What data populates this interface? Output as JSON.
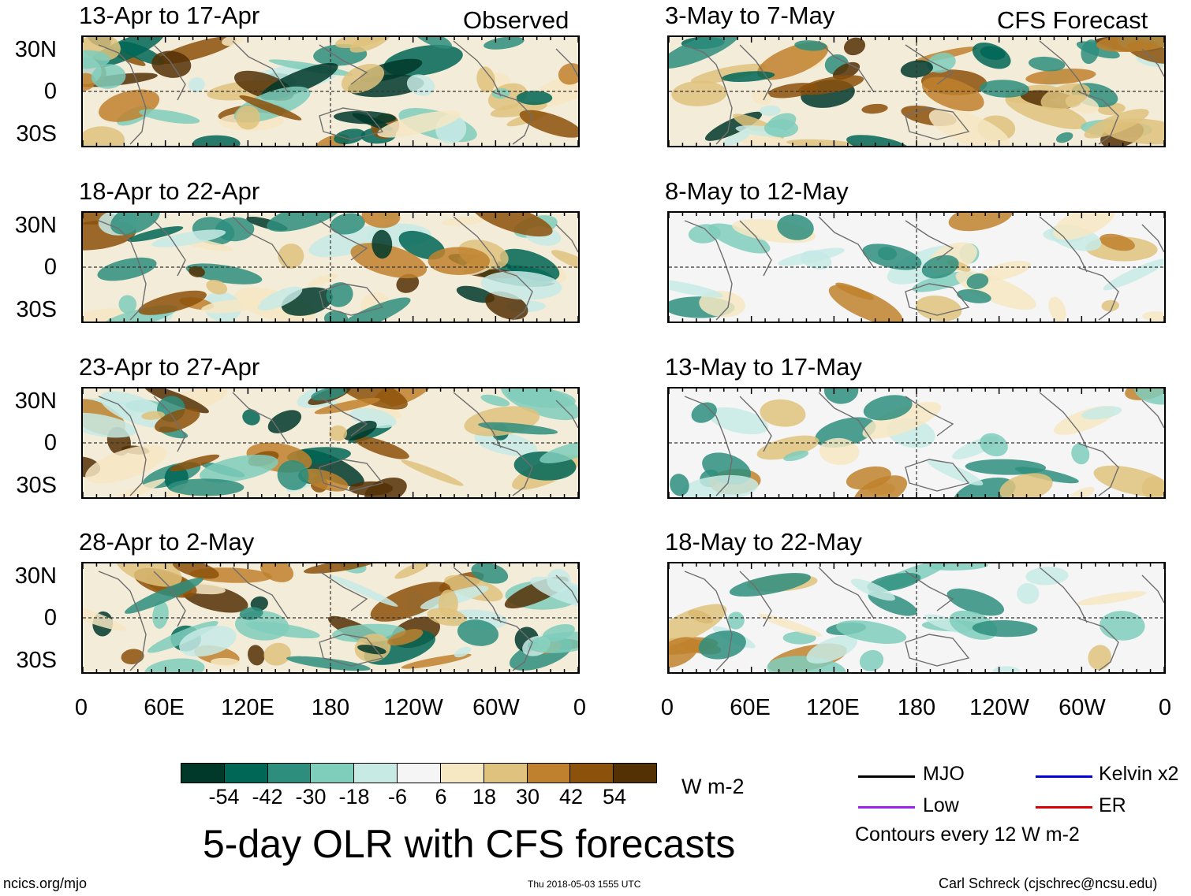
{
  "observed_label": "Observed",
  "forecast_label": "CFS Forecast",
  "panels": [
    {
      "title": "13-Apr to 17-Apr",
      "column": "left"
    },
    {
      "title": "18-Apr to 22-Apr",
      "column": "left"
    },
    {
      "title": "23-Apr to 27-Apr",
      "column": "left"
    },
    {
      "title": "28-Apr to 2-May",
      "column": "left"
    },
    {
      "title": "3-May to 7-May",
      "column": "right"
    },
    {
      "title": "8-May to 12-May",
      "column": "right"
    },
    {
      "title": "13-May to 17-May",
      "column": "right"
    },
    {
      "title": "18-May to 22-May",
      "column": "right"
    }
  ],
  "lat_labels": [
    "30N",
    "0",
    "30S"
  ],
  "lon_labels": [
    "0",
    "60E",
    "120E",
    "180",
    "120W",
    "60W",
    "0"
  ],
  "colorbar": {
    "colors": [
      "#00382a",
      "#006656",
      "#2e8e7e",
      "#7fcdbb",
      "#c7eae5",
      "#f5f5f5",
      "#f6e8c3",
      "#dfc27d",
      "#bf812d",
      "#8c510a",
      "#543005"
    ],
    "labels": [
      "-54",
      "-42",
      "-30",
      "-18",
      "-6",
      "6",
      "18",
      "30",
      "42",
      "54"
    ],
    "units": "W m-2"
  },
  "main_title": "5-day OLR with CFS forecasts",
  "legend": {
    "items": [
      {
        "label": "MJO",
        "color": "#000000"
      },
      {
        "label": "Kelvin x2",
        "color": "#0000dd"
      },
      {
        "label": "Low",
        "color": "#a020f0"
      },
      {
        "label": "ER",
        "color": "#dd0000"
      }
    ],
    "note": "Contours every 12 W m-2"
  },
  "footer": {
    "left": "ncics.org/mjo",
    "center": "Thu 2018-05-03 1555 UTC",
    "right": "Carl Schreck (cjschrec@ncsu.edu)"
  }
}
